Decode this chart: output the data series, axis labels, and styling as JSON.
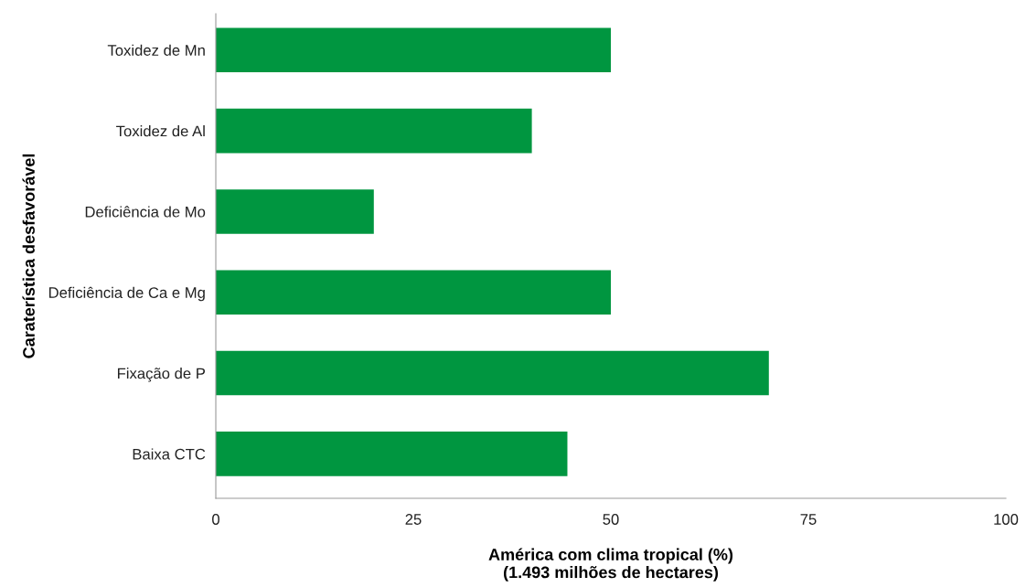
{
  "chart_data": {
    "type": "bar",
    "orientation": "horizontal",
    "xlabel": "América com clima tropical (%)\n(1.493 milhões de hectares)",
    "ylabel": "Caraterística desfavorável",
    "categories": [
      "Toxidez de Mn",
      "Toxidez de Al",
      "Deficiência de Mo",
      "Deficiência de Ca e Mg",
      "Fixação de P",
      "Baixa CTC"
    ],
    "values": [
      50,
      40,
      20,
      50,
      70,
      44.5
    ],
    "color": "#009640",
    "xlim": [
      0,
      100
    ],
    "xticks": [
      0,
      25,
      50,
      75,
      100
    ],
    "grid": false
  }
}
